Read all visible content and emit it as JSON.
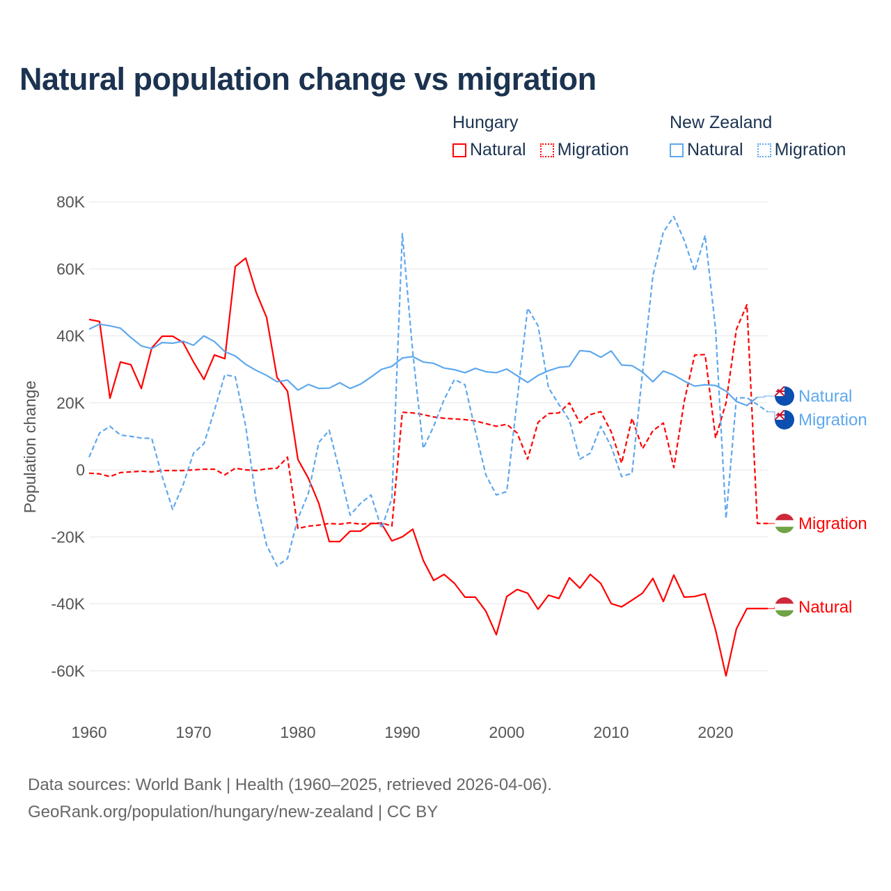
{
  "title": "Natural population change vs migration",
  "legend": {
    "groups": [
      {
        "name": "Hungary",
        "items": [
          "Natural",
          "Migration"
        ],
        "color": "#ff0000"
      },
      {
        "name": "New Zealand",
        "items": [
          "Natural",
          "Migration"
        ],
        "color": "#5ea8ee"
      }
    ]
  },
  "footer": {
    "line1": "Data sources: World Bank | Health (1960–2025, retrieved 2026-04-06).",
    "line2": "GeoRank.org/population/hungary/new-zealand | CC BY"
  },
  "chart_data": {
    "type": "line",
    "title": "Natural population change vs migration",
    "xlabel": "",
    "ylabel": "Population change",
    "xlim": [
      1960,
      2025
    ],
    "ylim": [
      -70000,
      80000
    ],
    "x_ticks": [
      1960,
      1970,
      1980,
      1990,
      2000,
      2010,
      2020
    ],
    "y_ticks": [
      80000,
      60000,
      40000,
      20000,
      0,
      -20000,
      -40000,
      -60000
    ],
    "y_tick_labels": [
      "80K",
      "60K",
      "40K",
      "20K",
      "0",
      "-20K",
      "-40K",
      "-60K"
    ],
    "grid": true,
    "legend_position": "top-right",
    "x_start": 1960,
    "series": [
      {
        "name": "Hungary Natural",
        "end_label": "Natural",
        "color": "#ff0000",
        "dash": false,
        "values": [
          44.9,
          44.3,
          21.4,
          32.2,
          31.4,
          24.3,
          36.4,
          39.9,
          39.9,
          38,
          32.2,
          27,
          34.3,
          33.2,
          60.7,
          63.2,
          53,
          45.5,
          27.6,
          23.5,
          3.1,
          -2.5,
          -10,
          -21.4,
          -21.4,
          -18.3,
          -18.3,
          -16,
          -16,
          -21.2,
          -20,
          -17.7,
          -27,
          -33,
          -31.2,
          -33.9,
          -38,
          -38,
          -42.2,
          -49.2,
          -37.8,
          -35.7,
          -36.8,
          -41.6,
          -37.4,
          -38.4,
          -32.2,
          -35.3,
          -31.2,
          -33.9,
          -39.9,
          -40.9,
          -38.9,
          -36.8,
          -32.4,
          -39.3,
          -31.4,
          -38,
          -37.8,
          -37,
          -47.8,
          -61.5,
          -47.4,
          -41.4,
          -41.4,
          -41.4
        ]
      },
      {
        "name": "Hungary Migration",
        "end_label": "Migration",
        "color": "#ff0000",
        "dash": true,
        "values": [
          -1,
          -1.2,
          -2,
          -0.8,
          -0.6,
          -0.4,
          -0.6,
          -0.2,
          -0.2,
          -0.2,
          0,
          0.2,
          0.2,
          -1.5,
          0.5,
          0,
          -0.2,
          0.3,
          0.5,
          3.8,
          -17.5,
          -16.8,
          -16.5,
          -16,
          -16.2,
          -15.8,
          -16.2,
          -16,
          -15.8,
          -16.8,
          17.2,
          17,
          16.5,
          15.8,
          15.4,
          15.2,
          15,
          14.6,
          13.8,
          13,
          13.6,
          11,
          3.2,
          14.2,
          16.8,
          17,
          20,
          14,
          16.5,
          17.4,
          11.4,
          2,
          15.4,
          6.3,
          11.7,
          14,
          0.7,
          20.5,
          34.3,
          34.4,
          9.5,
          20,
          42,
          49.3,
          -16,
          -16
        ]
      },
      {
        "name": "New Zealand Natural",
        "end_label": "Natural",
        "color": "#5ea8ee",
        "dash": false,
        "values": [
          42,
          43.5,
          43,
          42.3,
          39.5,
          37,
          36.2,
          38,
          37.8,
          38.4,
          37.2,
          40,
          38.3,
          35.3,
          34,
          31.5,
          29.7,
          28.2,
          26.3,
          26.8,
          23.8,
          25.5,
          24.3,
          24.4,
          26,
          24.3,
          25.6,
          27.7,
          30,
          30.9,
          33.4,
          33.8,
          32.2,
          31.8,
          30.4,
          29.9,
          29,
          30.3,
          29.3,
          29,
          30.1,
          28.1,
          26.1,
          28.2,
          29.6,
          30.6,
          30.9,
          35.6,
          35.3,
          33.6,
          35.5,
          31.3,
          31.1,
          29.2,
          26.3,
          29.5,
          28.3,
          26.5,
          25,
          25.4,
          25.2,
          23.5,
          20.4,
          19.2,
          21.7
        ]
      },
      {
        "name": "New Zealand Migration",
        "end_label": "Migration",
        "color": "#5ea8ee",
        "dash": true,
        "values": [
          3.8,
          11,
          13,
          10.4,
          10,
          9.5,
          9.4,
          -2,
          -11.8,
          -4.5,
          5,
          7.8,
          17.7,
          28.4,
          27.8,
          13,
          -9,
          -22.5,
          -28.7,
          -26.5,
          -14.5,
          -7,
          8.2,
          11.8,
          -0.5,
          -13.5,
          -10,
          -7.5,
          -17.5,
          -8.5,
          70.5,
          35,
          6.4,
          13,
          21,
          27,
          25.4,
          11.5,
          -1.5,
          -7.5,
          -6.5,
          21,
          48.3,
          43,
          24.5,
          19.5,
          14.8,
          3.2,
          5,
          13,
          7,
          -2,
          -1,
          29,
          58,
          71,
          75.6,
          68.5,
          59.3,
          70,
          42,
          -14.5,
          21.5,
          21.5,
          19.5,
          17.3
        ]
      }
    ],
    "value_unit": "thousands"
  }
}
